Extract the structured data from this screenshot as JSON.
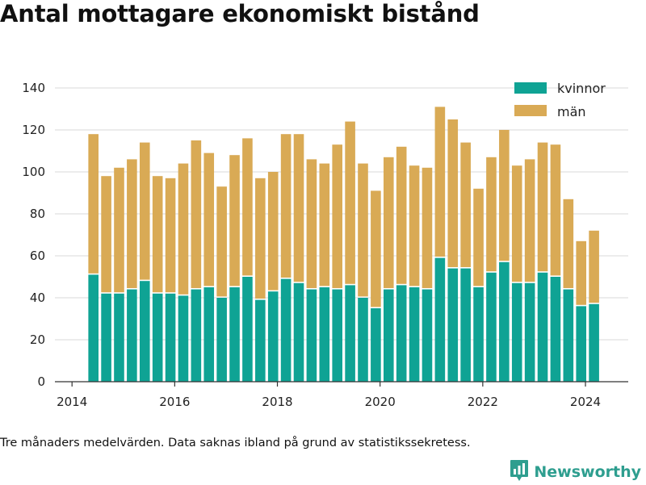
{
  "title": "Antal mottagare ekonomiskt bistånd",
  "footnote": "Tre månaders medelvärden. Data saknas ibland på grund av statistikssekretess.",
  "brand": {
    "name": "Newsworthy",
    "icon": "bar-chart-logo-icon"
  },
  "colors": {
    "kvinnor": "#0fa394",
    "man": "#d9aa55",
    "grid": "#d9d9d9",
    "text": "#222222",
    "brand": "#2e9e8f"
  },
  "legend": [
    "kvinnor",
    "män"
  ],
  "chart_data": {
    "type": "bar",
    "stacked": true,
    "x_ticks": [
      "2014",
      "2016",
      "2018",
      "2020",
      "2022",
      "2024"
    ],
    "y_ticks": [
      "0",
      "20",
      "40",
      "60",
      "80",
      "100",
      "120",
      "140"
    ],
    "xlim": [
      "2013-09",
      "2024-11"
    ],
    "ylim": [
      0,
      145
    ],
    "grid": true,
    "legend_position": "top-right",
    "periods": [
      "2014-06",
      "2014-09",
      "2014-12",
      "2015-03",
      "2015-06",
      "2015-09",
      "2015-12",
      "2016-03",
      "2016-06",
      "2016-09",
      "2016-12",
      "2017-03",
      "2017-06",
      "2017-09",
      "2017-12",
      "2018-03",
      "2018-06",
      "2018-09",
      "2018-12",
      "2019-03",
      "2019-06",
      "2019-09",
      "2019-12",
      "2020-03",
      "2020-06",
      "2020-09",
      "2020-12",
      "2021-03",
      "2021-06",
      "2021-09",
      "2021-12",
      "2022-03",
      "2022-06",
      "2022-09",
      "2022-12",
      "2023-03",
      "2023-06",
      "2023-09",
      "2023-12",
      "2024-03"
    ],
    "series": [
      {
        "name": "kvinnor",
        "values": [
          51,
          42,
          42,
          44,
          48,
          42,
          42,
          41,
          44,
          45,
          40,
          45,
          50,
          39,
          43,
          49,
          47,
          44,
          45,
          44,
          46,
          40,
          35,
          44,
          46,
          45,
          44,
          59,
          54,
          54,
          45,
          52,
          57,
          47,
          47,
          52,
          50,
          44,
          36,
          37
        ]
      },
      {
        "name": "män",
        "values": [
          67,
          56,
          60,
          62,
          66,
          56,
          55,
          63,
          71,
          64,
          53,
          63,
          66,
          58,
          57,
          69,
          71,
          62,
          59,
          69,
          78,
          64,
          56,
          63,
          66,
          58,
          58,
          72,
          71,
          60,
          47,
          55,
          63,
          56,
          59,
          62,
          63,
          43,
          31,
          35
        ]
      }
    ]
  }
}
